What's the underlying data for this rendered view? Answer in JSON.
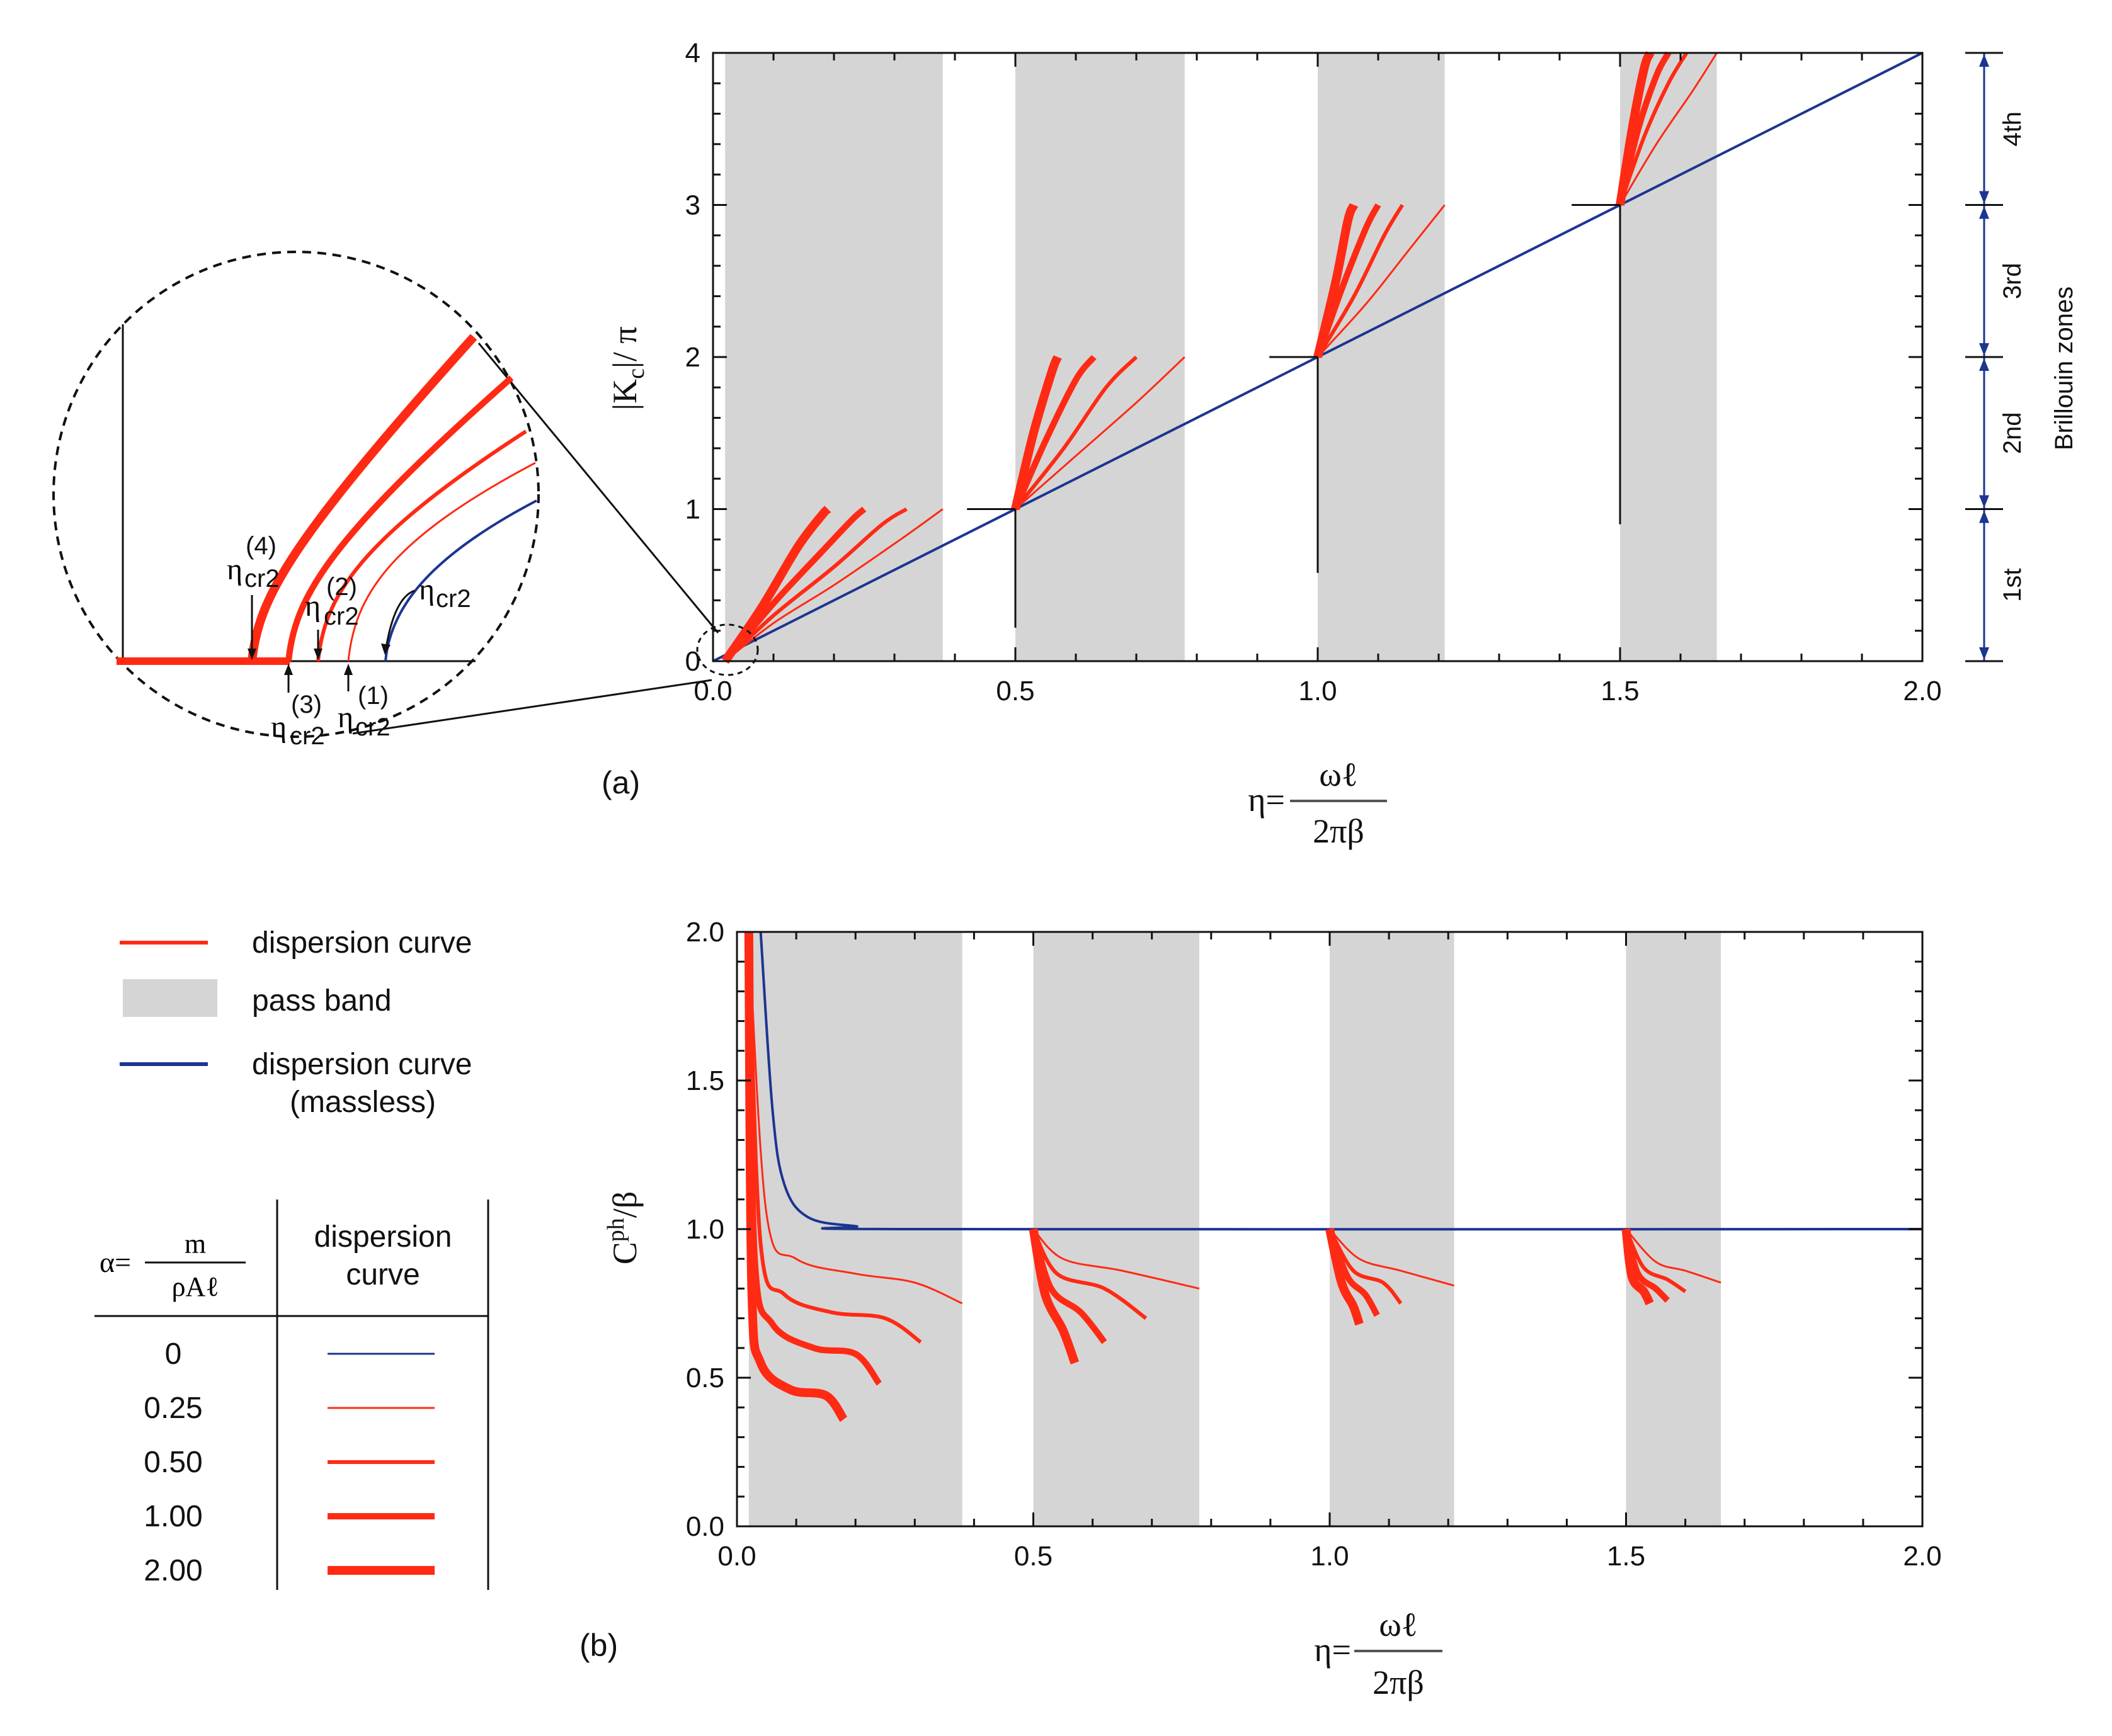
{
  "colors": {
    "dispersion": "#ff2a14",
    "massless": "#1c3591",
    "passband": "#d5d5d5",
    "axis": "#111111"
  },
  "chart_data": [
    {
      "id": "a",
      "panel_label": "(a)",
      "type": "line",
      "ylabel": "|K_c|/π",
      "ylabel_parts": {
        "main": "|K",
        "sub": "c",
        "rest": "|/ π"
      },
      "xlabel": {
        "lhs": "η=",
        "num": "ωℓ",
        "den": "2πβ"
      },
      "xlim": [
        0,
        2.0
      ],
      "ylim": [
        0,
        4
      ],
      "x_ticks": [
        0.0,
        0.5,
        1.0,
        1.5,
        2.0
      ],
      "x_tick_labels": [
        "0.0",
        "0.5",
        "1.0",
        "1.5",
        "2.0"
      ],
      "y_ticks": [
        0,
        1,
        2,
        3,
        4
      ],
      "y_tick_labels": [
        "0",
        "1",
        "2",
        "3",
        "4"
      ],
      "pass_bands": [
        [
          0.02,
          0.38
        ],
        [
          0.5,
          0.78
        ],
        [
          1.0,
          1.21
        ],
        [
          1.5,
          1.66
        ]
      ],
      "brillouin_zones": {
        "title": "Brillouin zones",
        "zones": [
          {
            "label": "1st",
            "range": [
              0,
              1
            ]
          },
          {
            "label": "2nd",
            "range": [
              1,
              2
            ]
          },
          {
            "label": "3rd",
            "range": [
              2,
              3
            ]
          },
          {
            "label": "4th",
            "range": [
              3,
              4
            ]
          }
        ]
      },
      "massless_curve": {
        "alpha": 0,
        "x": [
          0,
          2.0
        ],
        "y": [
          0,
          4
        ]
      },
      "dispersion_curves": [
        {
          "alpha": 0.25,
          "branches": [
            {
              "x": [
                0.02,
                0.1,
                0.2,
                0.31,
                0.38
              ],
              "y": [
                0,
                0.25,
                0.5,
                0.8,
                1.0
              ]
            },
            {
              "x": [
                0.5,
                0.6,
                0.7,
                0.78
              ],
              "y": [
                1.0,
                1.35,
                1.7,
                2.0
              ]
            },
            {
              "x": [
                1.0,
                1.08,
                1.15,
                1.21
              ],
              "y": [
                2.0,
                2.35,
                2.7,
                3.0
              ]
            },
            {
              "x": [
                1.5,
                1.56,
                1.62,
                1.66
              ],
              "y": [
                3.0,
                3.4,
                3.75,
                4.0
              ]
            }
          ]
        },
        {
          "alpha": 0.5,
          "branches": [
            {
              "x": [
                0.02,
                0.1,
                0.2,
                0.28,
                0.32
              ],
              "y": [
                0,
                0.3,
                0.62,
                0.9,
                1.0
              ]
            },
            {
              "x": [
                0.5,
                0.58,
                0.65,
                0.7
              ],
              "y": [
                1.0,
                1.4,
                1.8,
                2.0
              ]
            },
            {
              "x": [
                1.0,
                1.06,
                1.11,
                1.14
              ],
              "y": [
                2.0,
                2.4,
                2.8,
                3.0
              ]
            },
            {
              "x": [
                1.5,
                1.54,
                1.58,
                1.61
              ],
              "y": [
                3.0,
                3.45,
                3.8,
                4.0
              ]
            }
          ]
        },
        {
          "alpha": 1.0,
          "branches": [
            {
              "x": [
                0.02,
                0.1,
                0.18,
                0.23,
                0.25
              ],
              "y": [
                0,
                0.38,
                0.72,
                0.93,
                1.0
              ]
            },
            {
              "x": [
                0.5,
                0.55,
                0.6,
                0.63
              ],
              "y": [
                1.0,
                1.45,
                1.85,
                2.0
              ]
            },
            {
              "x": [
                1.0,
                1.04,
                1.08,
                1.1
              ],
              "y": [
                2.0,
                2.45,
                2.85,
                3.0
              ]
            },
            {
              "x": [
                1.5,
                1.53,
                1.56,
                1.58
              ],
              "y": [
                3.0,
                3.5,
                3.85,
                4.0
              ]
            }
          ]
        },
        {
          "alpha": 2.0,
          "branches": [
            {
              "x": [
                0.02,
                0.08,
                0.14,
                0.18,
                0.19
              ],
              "y": [
                0,
                0.35,
                0.75,
                0.96,
                1.0
              ]
            },
            {
              "x": [
                0.5,
                0.53,
                0.56,
                0.57
              ],
              "y": [
                1.0,
                1.5,
                1.9,
                2.0
              ]
            },
            {
              "x": [
                1.0,
                1.03,
                1.05,
                1.06
              ],
              "y": [
                2.0,
                2.5,
                2.9,
                3.0
              ]
            },
            {
              "x": [
                1.5,
                1.52,
                1.54,
                1.55
              ],
              "y": [
                3.0,
                3.5,
                3.9,
                4.0
              ]
            }
          ]
        }
      ],
      "inset": {
        "labels": {
          "eta4": {
            "base": "η",
            "sup": "(4)",
            "sub": "cr2"
          },
          "eta2": {
            "base": "η",
            "sup": "(2)",
            "sub": "cr2"
          },
          "eta3": {
            "base": "η",
            "sup": "(3)",
            "sub": "cr2"
          },
          "eta1": {
            "base": "η",
            "sup": "(1)",
            "sub": "cr2"
          },
          "eta0": {
            "base": "η",
            "sub": "cr2"
          }
        }
      }
    },
    {
      "id": "b",
      "panel_label": "(b)",
      "type": "line",
      "ylabel_parts": {
        "main": "C",
        "sup": "ph",
        "rest": "/β"
      },
      "xlabel": {
        "lhs": "η=",
        "num": "ωℓ",
        "den": "2πβ"
      },
      "xlim": [
        0,
        2.0
      ],
      "ylim": [
        0,
        2.0
      ],
      "x_ticks": [
        0.0,
        0.5,
        1.0,
        1.5,
        2.0
      ],
      "x_tick_labels": [
        "0.0",
        "0.5",
        "1.0",
        "1.5",
        "2.0"
      ],
      "y_ticks": [
        0.0,
        0.5,
        1.0,
        1.5,
        2.0
      ],
      "y_tick_labels": [
        "0.0",
        "0.5",
        "1.0",
        "1.5",
        "2.0"
      ],
      "pass_bands": [
        [
          0.02,
          0.38
        ],
        [
          0.5,
          0.78
        ],
        [
          1.0,
          1.21
        ],
        [
          1.5,
          1.66
        ]
      ],
      "massless_curve": {
        "alpha": 0,
        "x": [
          0.04,
          0.06,
          0.08,
          0.12,
          0.2,
          0.3,
          2.0
        ],
        "y": [
          2.0,
          1.4,
          1.15,
          1.04,
          1.01,
          1.0,
          1.0
        ]
      },
      "dispersion_curves": [
        {
          "alpha": 0.25,
          "branches": [
            {
              "x": [
                0.02,
                0.05,
                0.1,
                0.2,
                0.3,
                0.38
              ],
              "y": [
                2.0,
                1.05,
                0.9,
                0.85,
                0.82,
                0.75
              ]
            },
            {
              "x": [
                0.5,
                0.55,
                0.65,
                0.78
              ],
              "y": [
                1.0,
                0.9,
                0.86,
                0.8
              ]
            },
            {
              "x": [
                1.0,
                1.05,
                1.12,
                1.21
              ],
              "y": [
                1.0,
                0.9,
                0.86,
                0.81
              ]
            },
            {
              "x": [
                1.5,
                1.55,
                1.6,
                1.66
              ],
              "y": [
                1.0,
                0.89,
                0.86,
                0.82
              ]
            }
          ]
        },
        {
          "alpha": 0.5,
          "branches": [
            {
              "x": [
                0.02,
                0.04,
                0.08,
                0.16,
                0.25,
                0.31
              ],
              "y": [
                2.0,
                0.95,
                0.78,
                0.72,
                0.7,
                0.62
              ]
            },
            {
              "x": [
                0.5,
                0.54,
                0.62,
                0.69
              ],
              "y": [
                1.0,
                0.85,
                0.8,
                0.7
              ]
            },
            {
              "x": [
                1.0,
                1.04,
                1.09,
                1.12
              ],
              "y": [
                1.0,
                0.86,
                0.82,
                0.75
              ]
            },
            {
              "x": [
                1.5,
                1.53,
                1.57,
                1.6
              ],
              "y": [
                1.0,
                0.87,
                0.83,
                0.79
              ]
            }
          ]
        },
        {
          "alpha": 1.0,
          "branches": [
            {
              "x": [
                0.02,
                0.03,
                0.06,
                0.13,
                0.2,
                0.24
              ],
              "y": [
                2.0,
                0.9,
                0.68,
                0.6,
                0.58,
                0.48
              ]
            },
            {
              "x": [
                0.5,
                0.53,
                0.58,
                0.62
              ],
              "y": [
                1.0,
                0.8,
                0.72,
                0.62
              ]
            },
            {
              "x": [
                1.0,
                1.03,
                1.06,
                1.08
              ],
              "y": [
                1.0,
                0.84,
                0.78,
                0.71
              ]
            },
            {
              "x": [
                1.5,
                1.52,
                1.55,
                1.57
              ],
              "y": [
                1.0,
                0.85,
                0.8,
                0.76
              ]
            }
          ]
        },
        {
          "alpha": 2.0,
          "branches": [
            {
              "x": [
                0.02,
                0.025,
                0.04,
                0.09,
                0.15,
                0.18
              ],
              "y": [
                2.0,
                0.8,
                0.55,
                0.46,
                0.44,
                0.36
              ]
            },
            {
              "x": [
                0.5,
                0.52,
                0.55,
                0.57
              ],
              "y": [
                1.0,
                0.78,
                0.66,
                0.55
              ]
            },
            {
              "x": [
                1.0,
                1.02,
                1.04,
                1.05
              ],
              "y": [
                1.0,
                0.82,
                0.74,
                0.68
              ]
            },
            {
              "x": [
                1.5,
                1.51,
                1.53,
                1.54
              ],
              "y": [
                1.0,
                0.84,
                0.79,
                0.75
              ]
            }
          ]
        }
      ]
    }
  ],
  "legend": {
    "items": [
      {
        "label": "dispersion curve",
        "kind": "red-line"
      },
      {
        "label": "pass band",
        "kind": "gray-box"
      },
      {
        "label": "dispersion curve",
        "sublabel": "(massless)",
        "kind": "blue-line"
      }
    ],
    "table": {
      "alpha_lhs": "α=",
      "alpha_num": "m",
      "alpha_den": "ρAℓ",
      "col_header_line1": "dispersion",
      "col_header_line2": "curve",
      "rows": [
        {
          "alpha": "0",
          "kind": "blue",
          "weight": 3
        },
        {
          "alpha": "0.25",
          "kind": "red",
          "weight": 3
        },
        {
          "alpha": "0.50",
          "kind": "red",
          "weight": 6
        },
        {
          "alpha": "1.00",
          "kind": "red",
          "weight": 10
        },
        {
          "alpha": "2.00",
          "kind": "red",
          "weight": 14
        }
      ]
    }
  }
}
